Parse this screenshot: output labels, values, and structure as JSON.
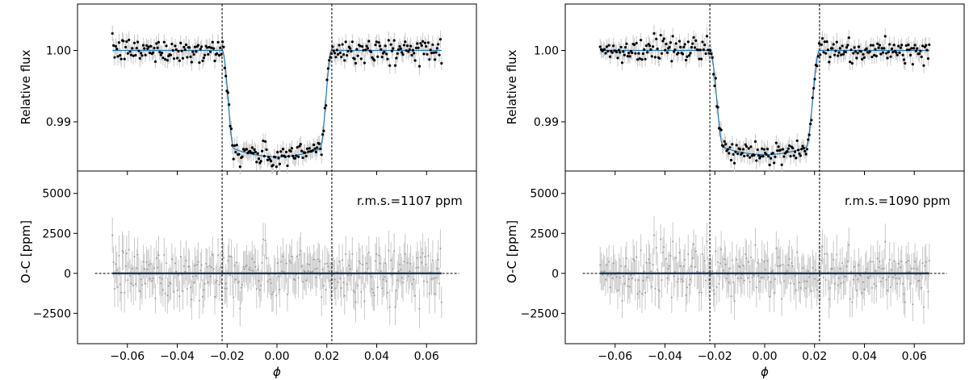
{
  "colors": {
    "model": "#1f77b4",
    "points": "#000000",
    "residual_points": "#9a9a9a",
    "error_bars": "#c8c8c8",
    "markers": "#000000"
  },
  "chart_data": [
    {
      "type": "scatter",
      "panel": "left",
      "x_label": "ϕ",
      "x_ticks": [
        -0.06,
        -0.04,
        -0.02,
        0.0,
        0.02,
        0.04,
        0.06
      ],
      "x_tick_labels": [
        "−0.06",
        "−0.04",
        "−0.02",
        "0.00",
        "0.02",
        "0.04",
        "0.06"
      ],
      "xlim": [
        -0.08,
        0.08
      ],
      "contact_lines_x": [
        -0.022,
        0.022
      ],
      "data_x_range": [
        -0.066,
        0.066
      ],
      "top": {
        "ylabel": "Relative flux",
        "ylim": [
          0.9831,
          1.0065
        ],
        "y_ticks": [
          0.99,
          1.0
        ],
        "y_tick_labels": [
          "0.99",
          "1.00"
        ],
        "transit_depth": 0.0138,
        "ingress_duration": 0.0048,
        "limb_curvature": 0.0011,
        "flux_error": 0.0011
      },
      "bottom": {
        "ylabel": "O-C [ppm]",
        "ylim": [
          -4400,
          6400
        ],
        "y_ticks": [
          -2500,
          0,
          2500,
          5000
        ],
        "y_tick_labels": [
          "−2500",
          "0",
          "2500",
          "5000"
        ],
        "rms_label": "r.m.s.=1107 ppm",
        "rms_ppm": 1107,
        "zero_line_x": [
          -0.073,
          0.073
        ]
      }
    },
    {
      "type": "scatter",
      "panel": "right",
      "x_label": "ϕ",
      "x_ticks": [
        -0.06,
        -0.04,
        -0.02,
        0.0,
        0.02,
        0.04,
        0.06
      ],
      "x_tick_labels": [
        "−0.06",
        "−0.04",
        "−0.02",
        "0.00",
        "0.02",
        "0.04",
        "0.06"
      ],
      "xlim": [
        -0.08,
        0.08
      ],
      "contact_lines_x": [
        -0.022,
        0.022
      ],
      "data_x_range": [
        -0.066,
        0.066
      ],
      "top": {
        "ylabel": "Relative flux",
        "ylim": [
          0.9831,
          1.0065
        ],
        "y_ticks": [
          0.99,
          1.0
        ],
        "y_tick_labels": [
          "0.99",
          "1.00"
        ],
        "transit_depth": 0.0136,
        "ingress_duration": 0.0055,
        "limb_curvature": 0.001,
        "flux_error": 0.00109
      },
      "bottom": {
        "ylabel": "O-C [ppm]",
        "ylim": [
          -4400,
          6400
        ],
        "y_ticks": [
          -2500,
          0,
          2500,
          5000
        ],
        "y_tick_labels": [
          "−2500",
          "0",
          "2500",
          "5000"
        ],
        "rms_label": "r.m.s.=1090 ppm",
        "rms_ppm": 1090,
        "zero_line_x": [
          -0.073,
          0.073
        ]
      }
    }
  ]
}
